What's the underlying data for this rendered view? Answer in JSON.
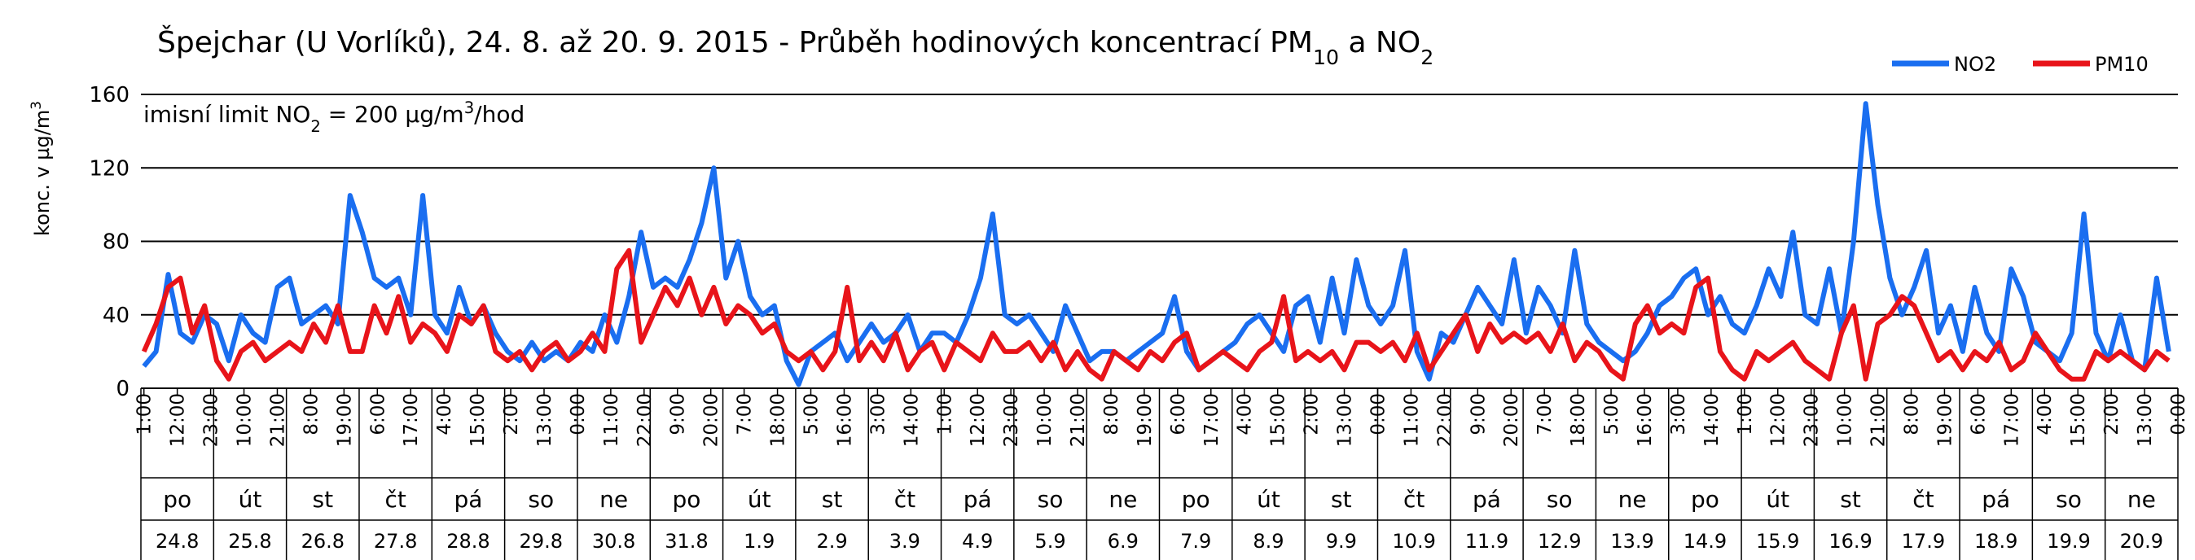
{
  "chart_data": {
    "type": "line",
    "title": [
      {
        "text": "Špejchar (U Vorlíků), 24. 8. až 20. 9. 2015 - Průběh hodinových koncentrací PM"
      },
      {
        "sub": "10"
      },
      {
        "text": " a NO"
      },
      {
        "sub": "2"
      }
    ],
    "annotation": [
      {
        "text": "imisní limit NO"
      },
      {
        "sub": "2"
      },
      {
        "text": " = 200 µg/m"
      },
      {
        "sup": "3"
      },
      {
        "text": "/hod"
      }
    ],
    "y_label": [
      {
        "text": "konc. v µg/m"
      },
      {
        "sup": "3"
      }
    ],
    "legend": "top-right",
    "grid": true,
    "ylim": [
      0,
      160
    ],
    "yticks": [
      0,
      40,
      80,
      120,
      160
    ],
    "xlim": [
      0,
      672
    ],
    "xticks": [
      {
        "value": 1,
        "label": "1:00"
      },
      {
        "value": 12,
        "label": "12:00"
      },
      {
        "value": 23,
        "label": "23:00"
      },
      {
        "value": 34,
        "label": "10:00"
      },
      {
        "value": 45,
        "label": "21:00"
      },
      {
        "value": 56,
        "label": "8:00"
      },
      {
        "value": 67,
        "label": "19:00"
      },
      {
        "value": 78,
        "label": "6:00"
      },
      {
        "value": 89,
        "label": "17:00"
      },
      {
        "value": 100,
        "label": "4:00"
      },
      {
        "value": 111,
        "label": "15:00"
      },
      {
        "value": 122,
        "label": "2:00"
      },
      {
        "value": 133,
        "label": "13:00"
      },
      {
        "value": 144,
        "label": "0:00"
      },
      {
        "value": 155,
        "label": "11:00"
      },
      {
        "value": 166,
        "label": "22:00"
      },
      {
        "value": 177,
        "label": "9:00"
      },
      {
        "value": 188,
        "label": "20:00"
      },
      {
        "value": 199,
        "label": "7:00"
      },
      {
        "value": 210,
        "label": "18:00"
      },
      {
        "value": 221,
        "label": "5:00"
      },
      {
        "value": 232,
        "label": "16:00"
      },
      {
        "value": 243,
        "label": "3:00"
      },
      {
        "value": 254,
        "label": "14:00"
      },
      {
        "value": 265,
        "label": "1:00"
      },
      {
        "value": 276,
        "label": "12:00"
      },
      {
        "value": 287,
        "label": "23:00"
      },
      {
        "value": 298,
        "label": "10:00"
      },
      {
        "value": 309,
        "label": "21:00"
      },
      {
        "value": 320,
        "label": "8:00"
      },
      {
        "value": 331,
        "label": "19:00"
      },
      {
        "value": 342,
        "label": "6:00"
      },
      {
        "value": 353,
        "label": "17:00"
      },
      {
        "value": 364,
        "label": "4:00"
      },
      {
        "value": 375,
        "label": "15:00"
      },
      {
        "value": 386,
        "label": "2:00"
      },
      {
        "value": 397,
        "label": "13:00"
      },
      {
        "value": 408,
        "label": "0:00"
      },
      {
        "value": 419,
        "label": "11:00"
      },
      {
        "value": 430,
        "label": "22:00"
      },
      {
        "value": 441,
        "label": "9:00"
      },
      {
        "value": 452,
        "label": "20:00"
      },
      {
        "value": 463,
        "label": "7:00"
      },
      {
        "value": 474,
        "label": "18:00"
      },
      {
        "value": 485,
        "label": "5:00"
      },
      {
        "value": 496,
        "label": "16:00"
      },
      {
        "value": 507,
        "label": "3:00"
      },
      {
        "value": 518,
        "label": "14:00"
      },
      {
        "value": 529,
        "label": "1:00"
      },
      {
        "value": 540,
        "label": "12:00"
      },
      {
        "value": 551,
        "label": "23:00"
      },
      {
        "value": 562,
        "label": "10:00"
      },
      {
        "value": 573,
        "label": "21:00"
      },
      {
        "value": 584,
        "label": "8:00"
      },
      {
        "value": 595,
        "label": "19:00"
      },
      {
        "value": 606,
        "label": "6:00"
      },
      {
        "value": 617,
        "label": "17:00"
      },
      {
        "value": 628,
        "label": "4:00"
      },
      {
        "value": 639,
        "label": "15:00"
      },
      {
        "value": 650,
        "label": "2:00"
      },
      {
        "value": 661,
        "label": "13:00"
      },
      {
        "value": 672,
        "label": "0:00"
      }
    ],
    "weekdays": [
      "po",
      "út",
      "st",
      "čt",
      "pá",
      "so",
      "ne",
      "po",
      "út",
      "st",
      "čt",
      "pá",
      "so",
      "ne",
      "po",
      "út",
      "st",
      "čt",
      "pá",
      "so",
      "ne",
      "po",
      "út",
      "st",
      "čt",
      "pá",
      "so",
      "ne"
    ],
    "dates": [
      "24.8",
      "25.8",
      "26.8",
      "27.8",
      "28.8",
      "29.8",
      "30.8",
      "31.8",
      "1.9",
      "2.9",
      "3.9",
      "4.9",
      "5.9",
      "6.9",
      "7.9",
      "8.9",
      "9.9",
      "10.9",
      "11.9",
      "12.9",
      "13.9",
      "14.9",
      "15.9",
      "16.9",
      "17.9",
      "18.9",
      "19.9",
      "20.9"
    ],
    "x": [
      1,
      5,
      9,
      13,
      17,
      21,
      25,
      29,
      33,
      37,
      41,
      45,
      49,
      53,
      57,
      61,
      65,
      69,
      73,
      77,
      81,
      85,
      89,
      93,
      97,
      101,
      105,
      109,
      113,
      117,
      121,
      125,
      129,
      133,
      137,
      141,
      145,
      149,
      153,
      157,
      161,
      165,
      169,
      173,
      177,
      181,
      185,
      189,
      193,
      197,
      201,
      205,
      209,
      213,
      217,
      221,
      225,
      229,
      233,
      237,
      241,
      245,
      249,
      253,
      257,
      261,
      265,
      269,
      273,
      277,
      281,
      285,
      289,
      293,
      297,
      301,
      305,
      309,
      313,
      317,
      321,
      325,
      329,
      333,
      337,
      341,
      345,
      349,
      353,
      357,
      361,
      365,
      369,
      373,
      377,
      381,
      385,
      389,
      393,
      397,
      401,
      405,
      409,
      413,
      417,
      421,
      425,
      429,
      433,
      437,
      441,
      445,
      449,
      453,
      457,
      461,
      465,
      469,
      473,
      477,
      481,
      485,
      489,
      493,
      497,
      501,
      505,
      509,
      513,
      517,
      521,
      525,
      529,
      533,
      537,
      541,
      545,
      549,
      553,
      557,
      561,
      565,
      569,
      573,
      577,
      581,
      585,
      589,
      593,
      597,
      601,
      605,
      609,
      613,
      617,
      621,
      625,
      629,
      633,
      637,
      641,
      645,
      649,
      653,
      657,
      661,
      665,
      669
    ],
    "series": [
      {
        "name": "NO2",
        "color": "#1a6ef0",
        "values": [
          12,
          20,
          62,
          30,
          25,
          40,
          35,
          15,
          40,
          30,
          25,
          55,
          60,
          35,
          40,
          45,
          35,
          105,
          85,
          60,
          55,
          60,
          40,
          105,
          40,
          30,
          55,
          35,
          45,
          30,
          20,
          15,
          25,
          15,
          20,
          15,
          25,
          20,
          40,
          25,
          50,
          85,
          55,
          60,
          55,
          70,
          90,
          120,
          60,
          80,
          50,
          40,
          45,
          15,
          2,
          20,
          25,
          30,
          15,
          25,
          35,
          25,
          30,
          40,
          20,
          30,
          30,
          25,
          40,
          60,
          95,
          40,
          35,
          40,
          30,
          20,
          45,
          30,
          15,
          20,
          20,
          15,
          20,
          25,
          30,
          50,
          20,
          10,
          15,
          20,
          25,
          35,
          40,
          30,
          20,
          45,
          50,
          25,
          60,
          30,
          70,
          45,
          35,
          45,
          75,
          20,
          5,
          30,
          25,
          40,
          55,
          45,
          35,
          70,
          30,
          55,
          45,
          30,
          75,
          35,
          25,
          20,
          15,
          20,
          30,
          45,
          50,
          60,
          65,
          40,
          50,
          35,
          30,
          45,
          65,
          50,
          85,
          40,
          35,
          65,
          30,
          80,
          155,
          100,
          60,
          40,
          55,
          75,
          30,
          45,
          20,
          55,
          30,
          20,
          65,
          50,
          25,
          20,
          15,
          30,
          95,
          30,
          15,
          40,
          15,
          10,
          60,
          20
        ]
      },
      {
        "name": "PM10",
        "color": "#e8141a",
        "values": [
          20,
          35,
          55,
          60,
          30,
          45,
          15,
          5,
          20,
          25,
          15,
          20,
          25,
          20,
          35,
          25,
          45,
          20,
          20,
          45,
          30,
          50,
          25,
          35,
          30,
          20,
          40,
          35,
          45,
          20,
          15,
          20,
          10,
          20,
          25,
          15,
          20,
          30,
          20,
          65,
          75,
          25,
          40,
          55,
          45,
          60,
          40,
          55,
          35,
          45,
          40,
          30,
          35,
          20,
          15,
          20,
          10,
          20,
          55,
          15,
          25,
          15,
          30,
          10,
          20,
          25,
          10,
          25,
          20,
          15,
          30,
          20,
          20,
          25,
          15,
          25,
          10,
          20,
          10,
          5,
          20,
          15,
          10,
          20,
          15,
          25,
          30,
          10,
          15,
          20,
          15,
          10,
          20,
          25,
          50,
          15,
          20,
          15,
          20,
          10,
          25,
          25,
          20,
          25,
          15,
          30,
          10,
          20,
          30,
          40,
          20,
          35,
          25,
          30,
          25,
          30,
          20,
          35,
          15,
          25,
          20,
          10,
          5,
          35,
          45,
          30,
          35,
          30,
          55,
          60,
          20,
          10,
          5,
          20,
          15,
          20,
          25,
          15,
          10,
          5,
          30,
          45,
          5,
          35,
          40,
          50,
          45,
          30,
          15,
          20,
          10,
          20,
          15,
          25,
          10,
          15,
          30,
          20,
          10,
          5,
          5,
          20,
          15,
          20,
          15,
          10,
          20,
          15
        ]
      }
    ]
  }
}
